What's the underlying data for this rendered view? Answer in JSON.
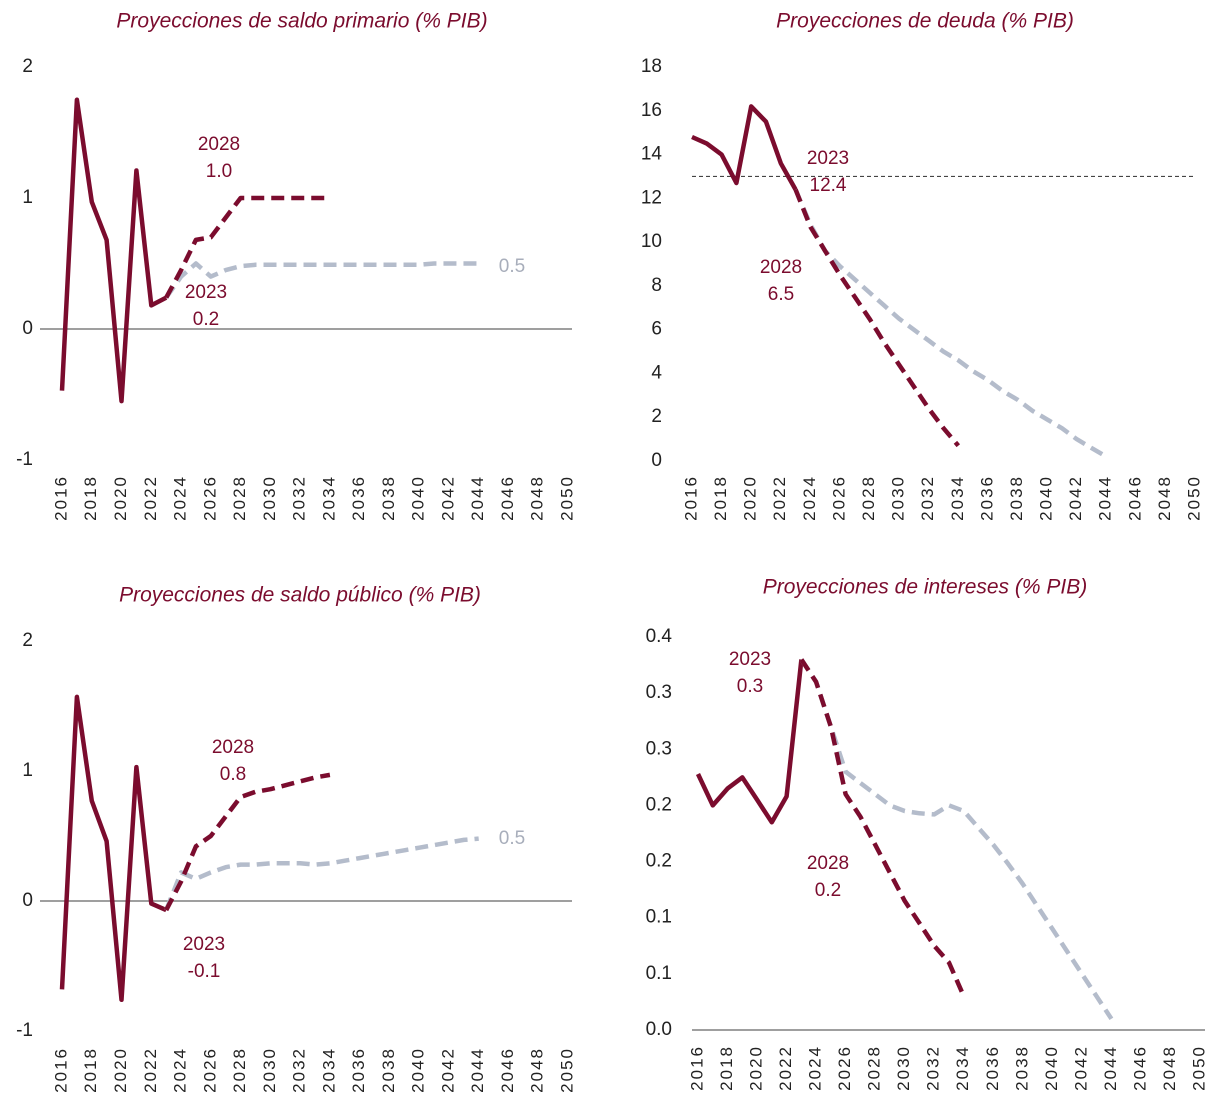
{
  "chart_data": [
    {
      "type": "line",
      "title": "Proyecciones de saldo primario (% PIB)",
      "x": [
        2016,
        2017,
        2018,
        2019,
        2020,
        2021,
        2022,
        2023,
        2024,
        2025,
        2026,
        2027,
        2028,
        2029,
        2030,
        2031,
        2032,
        2033,
        2034,
        2035,
        2036,
        2037,
        2038,
        2039,
        2040,
        2041,
        2042,
        2043,
        2044,
        2045,
        2046,
        2047,
        2048,
        2049,
        2050
      ],
      "xlim": [
        2016,
        2050
      ],
      "xticks": [
        2016,
        2018,
        2020,
        2022,
        2024,
        2026,
        2028,
        2030,
        2032,
        2034,
        2036,
        2038,
        2040,
        2042,
        2044,
        2046,
        2048,
        2050
      ],
      "ylim": [
        -1,
        2
      ],
      "yticks": [
        -1,
        0,
        1,
        2
      ],
      "reference_line": {
        "value": 0,
        "dashed": false
      },
      "series": [
        {
          "color": "#7b0c2e",
          "dashed": false,
          "values": [
            -0.47,
            1.75,
            0.97,
            0.68,
            -0.55,
            1.21,
            0.18,
            0.24,
            null,
            null,
            null,
            null,
            null,
            null,
            null,
            null,
            null,
            null,
            null,
            null,
            null,
            null,
            null,
            null,
            null,
            null,
            null,
            null,
            null,
            null,
            null,
            null,
            null,
            null,
            null
          ]
        },
        {
          "color": "#b4bccb",
          "dashed": true,
          "values": [
            null,
            null,
            null,
            null,
            null,
            null,
            null,
            0.24,
            0.4,
            0.5,
            0.4,
            0.45,
            0.48,
            0.49,
            0.49,
            0.49,
            0.49,
            0.49,
            0.49,
            0.49,
            0.49,
            0.49,
            0.49,
            0.49,
            0.49,
            0.5,
            0.5,
            0.5,
            0.5,
            null,
            null,
            null,
            null,
            null,
            null
          ]
        },
        {
          "color": "#7b0c2e",
          "dashed": true,
          "values": [
            null,
            null,
            null,
            null,
            null,
            null,
            null,
            0.24,
            0.45,
            0.68,
            0.7,
            0.85,
            1.0,
            1.0,
            1.0,
            1.0,
            1.0,
            1.0,
            1.0,
            null,
            null,
            null,
            null,
            null,
            null,
            null,
            null,
            null,
            null,
            null,
            null,
            null,
            null,
            null,
            null
          ]
        }
      ],
      "annotations": [
        {
          "lines": [
            "2028",
            "1.0"
          ],
          "color": "#7b0c2e"
        },
        {
          "lines": [
            "2023",
            "0.2"
          ],
          "color": "#7b0c2e"
        },
        {
          "lines": [
            "0.5"
          ],
          "color": "#a8aebb"
        }
      ]
    },
    {
      "type": "line",
      "title": "Proyecciones de deuda (% PIB)",
      "x": [
        2016,
        2017,
        2018,
        2019,
        2020,
        2021,
        2022,
        2023,
        2024,
        2025,
        2026,
        2027,
        2028,
        2029,
        2030,
        2031,
        2032,
        2033,
        2034,
        2035,
        2036,
        2037,
        2038,
        2039,
        2040,
        2041,
        2042,
        2043,
        2044,
        2045,
        2046,
        2047,
        2048,
        2049,
        2050
      ],
      "xlim": [
        2016,
        2050
      ],
      "xticks": [
        2016,
        2018,
        2020,
        2022,
        2024,
        2026,
        2028,
        2030,
        2032,
        2034,
        2036,
        2038,
        2040,
        2042,
        2044,
        2046,
        2048,
        2050
      ],
      "ylim": [
        0,
        18
      ],
      "yticks": [
        0,
        2,
        4,
        6,
        8,
        10,
        12,
        14,
        16,
        18
      ],
      "reference_line": {
        "value": 13,
        "dashed": true
      },
      "series": [
        {
          "color": "#7b0c2e",
          "dashed": false,
          "values": [
            14.8,
            14.5,
            14.0,
            12.7,
            16.2,
            15.5,
            13.6,
            12.4,
            null,
            null,
            null,
            null,
            null,
            null,
            null,
            null,
            null,
            null,
            null,
            null,
            null,
            null,
            null,
            null,
            null,
            null,
            null,
            null,
            null,
            null,
            null,
            null,
            null,
            null,
            null
          ]
        },
        {
          "color": "#b4bccb",
          "dashed": true,
          "values": [
            null,
            null,
            null,
            null,
            null,
            null,
            null,
            12.4,
            10.8,
            9.6,
            8.9,
            8.3,
            7.7,
            7.1,
            6.5,
            6.0,
            5.5,
            5.0,
            4.6,
            4.1,
            3.7,
            3.2,
            2.8,
            2.3,
            1.9,
            1.5,
            1.0,
            0.6,
            0.2,
            null,
            null,
            null,
            null,
            null,
            null
          ]
        },
        {
          "color": "#7b0c2e",
          "dashed": true,
          "values": [
            null,
            null,
            null,
            null,
            null,
            null,
            null,
            12.4,
            10.7,
            9.6,
            8.5,
            7.5,
            6.5,
            5.4,
            4.4,
            3.4,
            2.4,
            1.5,
            0.7,
            null,
            null,
            null,
            null,
            null,
            null,
            null,
            null,
            null,
            null,
            null,
            null,
            null,
            null,
            null,
            null
          ]
        }
      ],
      "annotations": [
        {
          "lines": [
            "2023",
            "12.4"
          ],
          "color": "#7b0c2e"
        },
        {
          "lines": [
            "2028",
            "6.5"
          ],
          "color": "#7b0c2e"
        }
      ]
    },
    {
      "type": "line",
      "title": "Proyecciones de saldo público (% PIB)",
      "x": [
        2016,
        2017,
        2018,
        2019,
        2020,
        2021,
        2022,
        2023,
        2024,
        2025,
        2026,
        2027,
        2028,
        2029,
        2030,
        2031,
        2032,
        2033,
        2034,
        2035,
        2036,
        2037,
        2038,
        2039,
        2040,
        2041,
        2042,
        2043,
        2044,
        2045,
        2046,
        2047,
        2048,
        2049,
        2050
      ],
      "xlim": [
        2016,
        2050
      ],
      "xticks": [
        2016,
        2018,
        2020,
        2022,
        2024,
        2026,
        2028,
        2030,
        2032,
        2034,
        2036,
        2038,
        2040,
        2042,
        2044,
        2046,
        2048,
        2050
      ],
      "ylim": [
        -1,
        2
      ],
      "yticks": [
        -1,
        0,
        1,
        2
      ],
      "reference_line": {
        "value": 0,
        "dashed": false
      },
      "series": [
        {
          "color": "#7b0c2e",
          "dashed": false,
          "values": [
            -0.68,
            1.57,
            0.77,
            0.46,
            -0.76,
            1.03,
            -0.02,
            -0.07,
            null,
            null,
            null,
            null,
            null,
            null,
            null,
            null,
            null,
            null,
            null,
            null,
            null,
            null,
            null,
            null,
            null,
            null,
            null,
            null,
            null,
            null,
            null,
            null,
            null,
            null,
            null
          ]
        },
        {
          "color": "#b4bccb",
          "dashed": true,
          "values": [
            null,
            null,
            null,
            null,
            null,
            null,
            null,
            -0.07,
            0.22,
            0.17,
            0.22,
            0.26,
            0.28,
            0.28,
            0.29,
            0.29,
            0.29,
            0.28,
            0.29,
            0.31,
            0.33,
            0.35,
            0.37,
            0.39,
            0.41,
            0.43,
            0.45,
            0.47,
            0.48,
            null,
            null,
            null,
            null,
            null,
            null
          ]
        },
        {
          "color": "#7b0c2e",
          "dashed": true,
          "values": [
            null,
            null,
            null,
            null,
            null,
            null,
            null,
            -0.07,
            0.15,
            0.42,
            0.5,
            0.65,
            0.8,
            0.84,
            0.86,
            0.89,
            0.92,
            0.95,
            0.97,
            null,
            null,
            null,
            null,
            null,
            null,
            null,
            null,
            null,
            null,
            null,
            null,
            null,
            null,
            null,
            null
          ]
        }
      ],
      "annotations": [
        {
          "lines": [
            "2028",
            "0.8"
          ],
          "color": "#7b0c2e"
        },
        {
          "lines": [
            "2023",
            "-0.1"
          ],
          "color": "#7b0c2e"
        },
        {
          "lines": [
            "0.5"
          ],
          "color": "#a8aebb"
        }
      ]
    },
    {
      "type": "line",
      "title": "Proyecciones de intereses (% PIB)",
      "x": [
        2016,
        2017,
        2018,
        2019,
        2020,
        2021,
        2022,
        2023,
        2024,
        2025,
        2026,
        2027,
        2028,
        2029,
        2030,
        2031,
        2032,
        2033,
        2034,
        2035,
        2036,
        2037,
        2038,
        2039,
        2040,
        2041,
        2042,
        2043,
        2044,
        2045,
        2046,
        2047,
        2048,
        2049,
        2050
      ],
      "xlim": [
        2016,
        2050
      ],
      "xticks": [
        2016,
        2018,
        2020,
        2022,
        2024,
        2026,
        2028,
        2030,
        2032,
        2034,
        2036,
        2038,
        2040,
        2042,
        2044,
        2046,
        2048,
        2050
      ],
      "ylim": [
        0,
        0.35
      ],
      "yticks": [
        {
          "value": 0,
          "label": "0.0"
        },
        {
          "value": 0.05,
          "label": "0.1"
        },
        {
          "value": 0.1,
          "label": "0.1"
        },
        {
          "value": 0.15,
          "label": "0.2"
        },
        {
          "value": 0.2,
          "label": "0.2"
        },
        {
          "value": 0.25,
          "label": "0.3"
        },
        {
          "value": 0.3,
          "label": "0.3"
        },
        {
          "value": 0.35,
          "label": "0.4"
        }
      ],
      "series": [
        {
          "color": "#7b0c2e",
          "dashed": false,
          "values": [
            0.228,
            0.2,
            0.215,
            0.225,
            0.205,
            0.185,
            0.208,
            0.33,
            null,
            null,
            null,
            null,
            null,
            null,
            null,
            null,
            null,
            null,
            null,
            null,
            null,
            null,
            null,
            null,
            null,
            null,
            null,
            null,
            null,
            null,
            null,
            null,
            null,
            null,
            null
          ]
        },
        {
          "color": "#b4bccb",
          "dashed": true,
          "values": [
            null,
            null,
            null,
            null,
            null,
            null,
            null,
            0.33,
            0.31,
            0.27,
            0.23,
            0.22,
            0.21,
            0.2,
            0.195,
            0.193,
            0.192,
            0.2,
            0.195,
            0.18,
            0.165,
            0.148,
            0.13,
            0.11,
            0.09,
            0.07,
            0.05,
            0.03,
            0.01,
            null,
            null,
            null,
            null,
            null,
            null
          ]
        },
        {
          "color": "#7b0c2e",
          "dashed": true,
          "values": [
            null,
            null,
            null,
            null,
            null,
            null,
            null,
            0.33,
            0.31,
            0.27,
            0.21,
            0.19,
            0.165,
            0.14,
            0.115,
            0.095,
            0.075,
            0.06,
            0.03,
            null,
            null,
            null,
            null,
            null,
            null,
            null,
            null,
            null,
            null,
            null,
            null,
            null,
            null,
            null,
            null
          ]
        }
      ],
      "annotations": [
        {
          "lines": [
            "2023",
            "0.3"
          ],
          "color": "#7b0c2e"
        },
        {
          "lines": [
            "2028",
            "0.2"
          ],
          "color": "#7b0c2e"
        }
      ]
    }
  ]
}
